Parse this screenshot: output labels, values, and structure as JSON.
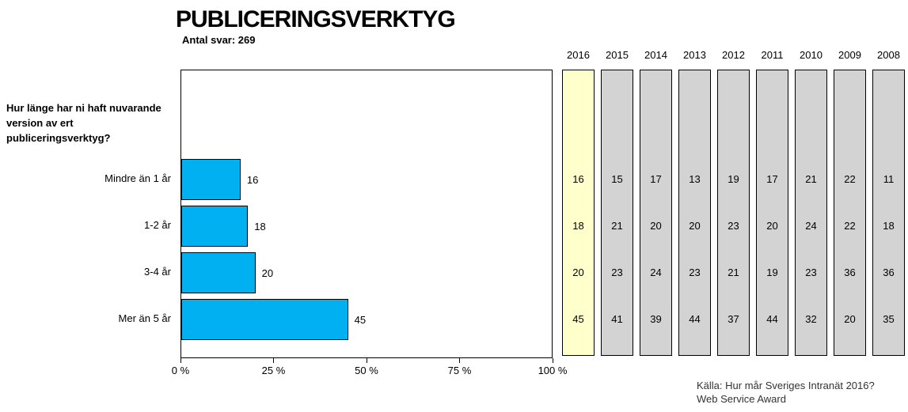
{
  "colors": {
    "bar": "#00B0F0",
    "highlight_column": "#FFFFCC",
    "history_column": "#D3D3D3",
    "border": "#000000",
    "source_text": "#333333"
  },
  "chart_data": {
    "type": "bar",
    "orientation": "horizontal",
    "title": "PUBLICERINGSVERKTYG",
    "subtitle": "Antal svar: 269",
    "question": "Hur länge har ni haft nuvarande version av ert publiceringsverktyg?",
    "categories": [
      "Mindre än 1 år",
      "1-2 år",
      "3-4 år",
      "Mer än 5 år"
    ],
    "unit": "percent",
    "xlim": [
      0,
      100
    ],
    "grid": false,
    "x_ticks": [
      {
        "value": 0,
        "label": "0 %"
      },
      {
        "value": 25,
        "label": "25 %"
      },
      {
        "value": 50,
        "label": "50 %"
      },
      {
        "value": 75,
        "label": "75 %"
      },
      {
        "value": 100,
        "label": "100 %"
      }
    ],
    "bar_series": "2016",
    "series": [
      {
        "name": "2016",
        "highlight": true,
        "values": [
          16,
          18,
          20,
          45
        ]
      },
      {
        "name": "2015",
        "highlight": false,
        "values": [
          15,
          21,
          23,
          41
        ]
      },
      {
        "name": "2014",
        "highlight": false,
        "values": [
          17,
          20,
          24,
          39
        ]
      },
      {
        "name": "2013",
        "highlight": false,
        "values": [
          13,
          20,
          23,
          44
        ]
      },
      {
        "name": "2012",
        "highlight": false,
        "values": [
          19,
          23,
          21,
          37
        ]
      },
      {
        "name": "2011",
        "highlight": false,
        "values": [
          17,
          20,
          19,
          44
        ]
      },
      {
        "name": "2010",
        "highlight": false,
        "values": [
          21,
          24,
          23,
          32
        ]
      },
      {
        "name": "2009",
        "highlight": false,
        "values": [
          22,
          22,
          36,
          20
        ]
      },
      {
        "name": "2008",
        "highlight": false,
        "values": [
          11,
          18,
          36,
          35
        ]
      }
    ],
    "source": [
      "Källa: Hur mår Sveriges Intranät 2016?",
      "Web Service Award"
    ]
  }
}
